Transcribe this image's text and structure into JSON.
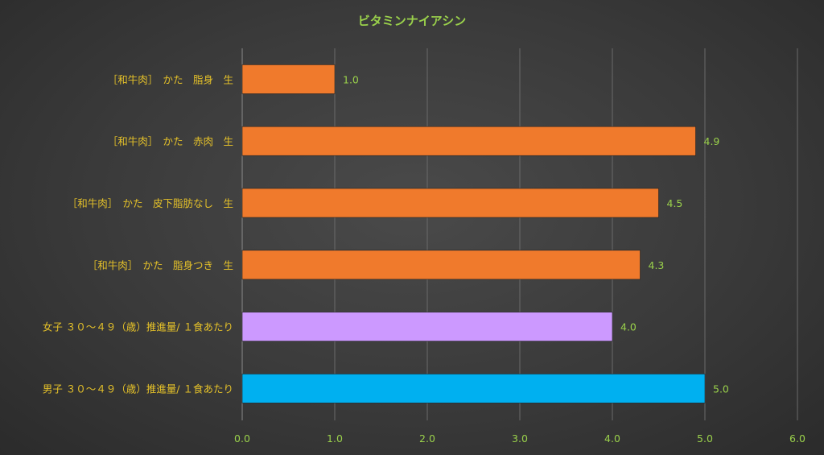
{
  "chart_data": {
    "type": "bar",
    "orientation": "horizontal",
    "title": "ビタミンナイアシン",
    "categories": [
      "［和牛肉］　かた　脂身　生",
      "［和牛肉］　かた　赤肉　生",
      "［和牛肉］　かた　皮下脂肪なし　生",
      "［和牛肉］　かた　脂身つき　生",
      "女子 ３０～４９（歳）推進量/ １食あたり",
      "男子 ３０～４９（歳）推進量/ １食あたり"
    ],
    "values": [
      1.0,
      4.9,
      4.5,
      4.3,
      4.0,
      5.0
    ],
    "value_labels": [
      "1.0",
      "4.9",
      "4.5",
      "4.3",
      "4.0",
      "5.0"
    ],
    "bar_colors": [
      "#f07a2c",
      "#f07a2c",
      "#f07a2c",
      "#f07a2c",
      "#cc99ff",
      "#00b0f0"
    ],
    "xlim": [
      0,
      6
    ],
    "ticks": [
      "0.0",
      "1.0",
      "2.0",
      "3.0",
      "4.0",
      "5.0",
      "6.0"
    ],
    "grid": true,
    "legend": "none",
    "colors": {
      "title": "#9ad14b",
      "category_text": "#e6c229",
      "tick_text": "#9ad14b",
      "grid": "#6a6a6a"
    }
  }
}
